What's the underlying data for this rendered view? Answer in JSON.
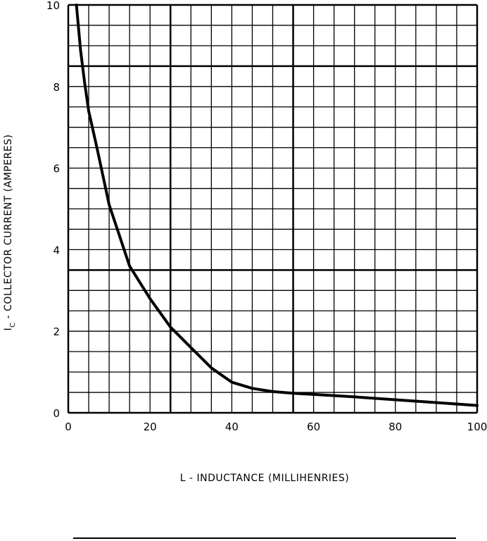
{
  "chart_data": {
    "type": "line",
    "xlabel": "L - INDUCTANCE (MILLIHENRIES)",
    "ylabel_main": "I",
    "ylabel_sub": "C",
    "ylabel_rest": " - COLLECTOR CURRENT (AMPERES)",
    "xlim": [
      0,
      100
    ],
    "ylim": [
      0,
      10
    ],
    "x_ticks": [
      0,
      20,
      40,
      60,
      80,
      100
    ],
    "y_ticks": [
      0,
      2,
      4,
      6,
      8,
      10
    ],
    "x_tick_labels": [
      "0",
      "20",
      "40",
      "60",
      "80",
      "100"
    ],
    "y_tick_labels": [
      "0",
      "2",
      "4",
      "6",
      "8",
      "10"
    ],
    "grid": true,
    "series": [
      {
        "x": [
          2,
          3,
          4,
          5,
          7,
          10,
          12,
          15,
          20,
          25,
          30,
          35,
          40,
          45,
          50,
          55,
          60,
          70,
          80,
          90,
          100
        ],
        "y": [
          10,
          8.9,
          8.1,
          7.4,
          6.5,
          5.1,
          4.5,
          3.6,
          2.8,
          2.1,
          1.6,
          1.1,
          0.75,
          0.6,
          0.52,
          0.48,
          0.45,
          0.39,
          0.32,
          0.25,
          0.18
        ]
      }
    ]
  }
}
